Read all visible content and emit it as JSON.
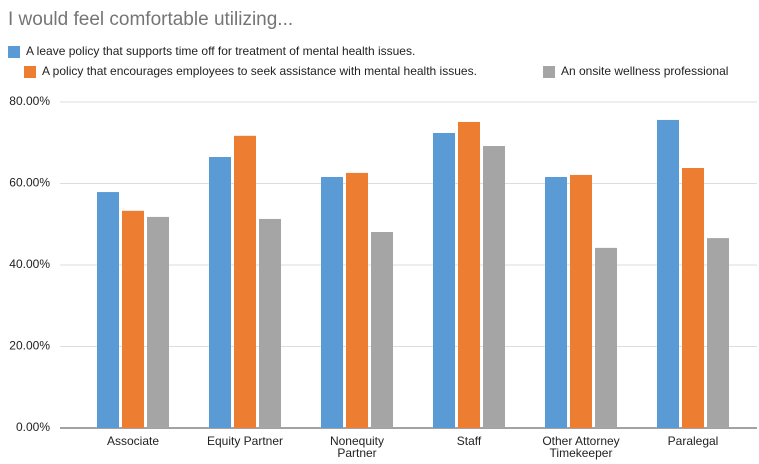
{
  "chart_data": {
    "type": "bar",
    "title": "I would feel comfortable utilizing...",
    "categories": [
      "Associate",
      "Equity Partner",
      "Nonequity Partner",
      "Staff",
      "Other Attorney Timekeeper",
      "Paralegal"
    ],
    "series": [
      {
        "name": "A leave policy that supports time off for treatment of mental health issues.",
        "color": "#5b9bd5",
        "values": [
          57.9,
          66.5,
          61.6,
          72.4,
          61.6,
          75.6
        ]
      },
      {
        "name": "A policy that encourages employees to seek assistance with mental health issues.",
        "color": "#ed7d31",
        "values": [
          53.3,
          71.7,
          62.6,
          75.1,
          62.1,
          63.8
        ]
      },
      {
        "name": "An onsite wellness professional",
        "color": "#a5a5a5",
        "values": [
          51.8,
          51.3,
          48.1,
          69.2,
          44.2,
          46.6
        ]
      }
    ],
    "ylim": [
      0,
      80
    ],
    "yticks": [
      {
        "value": 0,
        "label": "0.00%"
      },
      {
        "value": 20,
        "label": "20.00%"
      },
      {
        "value": 40,
        "label": "40.00%"
      },
      {
        "value": 60,
        "label": "60.00%"
      },
      {
        "value": 80,
        "label": "80.00%"
      }
    ],
    "grid": true
  }
}
